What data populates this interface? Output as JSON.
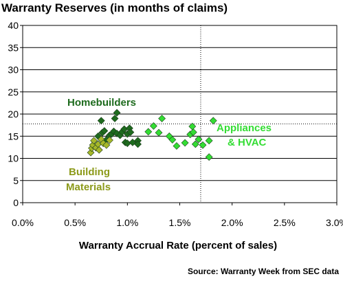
{
  "chart_data": {
    "type": "scatter",
    "title": "Warranty Reserves (in months of claims)",
    "xlabel": "Warranty Accrual Rate (percent of sales)",
    "ylabel": "",
    "xlim": [
      0.0,
      3.0
    ],
    "ylim": [
      0,
      40
    ],
    "x_ticks": [
      0.0,
      0.5,
      1.0,
      1.5,
      2.0,
      2.5,
      3.0
    ],
    "x_tick_labels": [
      "0.0%",
      "0.5%",
      "1.0%",
      "1.5%",
      "2.0%",
      "2.5%",
      "3.0%"
    ],
    "y_ticks": [
      0,
      5,
      10,
      15,
      20,
      25,
      30,
      35,
      40
    ],
    "y_tick_labels": [
      "0",
      "5",
      "10",
      "15",
      "20",
      "25",
      "30",
      "35",
      "40"
    ],
    "grid": "horizontal",
    "reference_lines": {
      "x": 1.7,
      "y": 17.8,
      "style": "dotted"
    },
    "series": [
      {
        "name": "Homebuilders",
        "color": "#1e6b1e",
        "points": [
          [
            0.72,
            15.0
          ],
          [
            0.75,
            18.5
          ],
          [
            0.76,
            15.8
          ],
          [
            0.78,
            16.2
          ],
          [
            0.8,
            14.2
          ],
          [
            0.83,
            15.2
          ],
          [
            0.85,
            15.5
          ],
          [
            0.87,
            16.1
          ],
          [
            0.88,
            19.0
          ],
          [
            0.9,
            20.3
          ],
          [
            0.9,
            15.6
          ],
          [
            0.93,
            15.2
          ],
          [
            0.95,
            16.0
          ],
          [
            0.97,
            16.6
          ],
          [
            0.98,
            13.6
          ],
          [
            1.0,
            15.5
          ],
          [
            1.0,
            13.4
          ],
          [
            1.02,
            16.8
          ],
          [
            1.03,
            15.9
          ],
          [
            1.05,
            13.6
          ],
          [
            1.1,
            14.0
          ],
          [
            1.1,
            13.2
          ]
        ]
      },
      {
        "name": "Building Materials",
        "color": "#a7b82a",
        "points": [
          [
            0.65,
            11.3
          ],
          [
            0.66,
            12.3
          ],
          [
            0.67,
            13.0
          ],
          [
            0.68,
            14.0
          ],
          [
            0.7,
            12.4
          ],
          [
            0.72,
            13.2
          ],
          [
            0.73,
            11.9
          ],
          [
            0.75,
            14.3
          ],
          [
            0.77,
            13.4
          ],
          [
            0.8,
            13.0
          ],
          [
            0.83,
            14.1
          ]
        ]
      },
      {
        "name": "Appliances & HVAC",
        "color": "#33dd33",
        "points": [
          [
            1.2,
            16.0
          ],
          [
            1.25,
            17.3
          ],
          [
            1.3,
            15.8
          ],
          [
            1.33,
            19.0
          ],
          [
            1.4,
            15.0
          ],
          [
            1.43,
            14.2
          ],
          [
            1.47,
            12.8
          ],
          [
            1.55,
            13.5
          ],
          [
            1.6,
            15.4
          ],
          [
            1.62,
            17.2
          ],
          [
            1.63,
            15.9
          ],
          [
            1.65,
            13.2
          ],
          [
            1.68,
            14.3
          ],
          [
            1.72,
            13.0
          ],
          [
            1.78,
            14.0
          ],
          [
            1.78,
            10.3
          ],
          [
            1.82,
            18.5
          ]
        ]
      }
    ],
    "annotations": [
      {
        "text": "Homebuilders",
        "series": 0
      },
      {
        "text": "Building",
        "series": 1
      },
      {
        "text": "Materials",
        "series": 1
      },
      {
        "text": "Appliances",
        "series": 2
      },
      {
        "text": "& HVAC",
        "series": 2
      }
    ]
  },
  "source": "Source: Warranty Week from SEC data"
}
